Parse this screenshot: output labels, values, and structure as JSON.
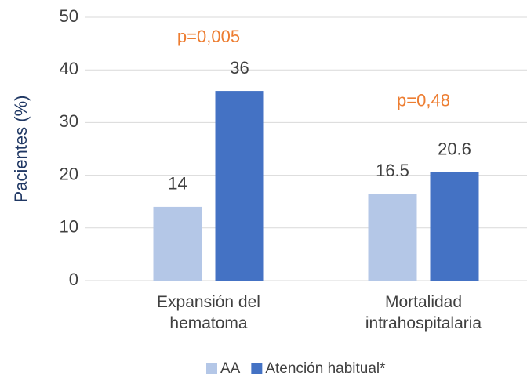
{
  "chart_data": {
    "type": "bar",
    "categories": [
      "Expansión del hematoma",
      "Mortalidad intrahospitalaria"
    ],
    "series": [
      {
        "name": "AA",
        "color": "#b4c7e7",
        "values": [
          14,
          16.5
        ]
      },
      {
        "name": "Atención habitual*",
        "color": "#4472c4",
        "values": [
          36,
          20.6
        ]
      }
    ],
    "annotations": [
      "p=0,005",
      "p=0,48"
    ],
    "annotation_color": "#ed7d31",
    "y_label": "Pacientes (%)",
    "ylim": [
      0,
      50
    ],
    "yticks": [
      0,
      10,
      20,
      30,
      40,
      50
    ],
    "grid": true,
    "legend": "bottom"
  }
}
